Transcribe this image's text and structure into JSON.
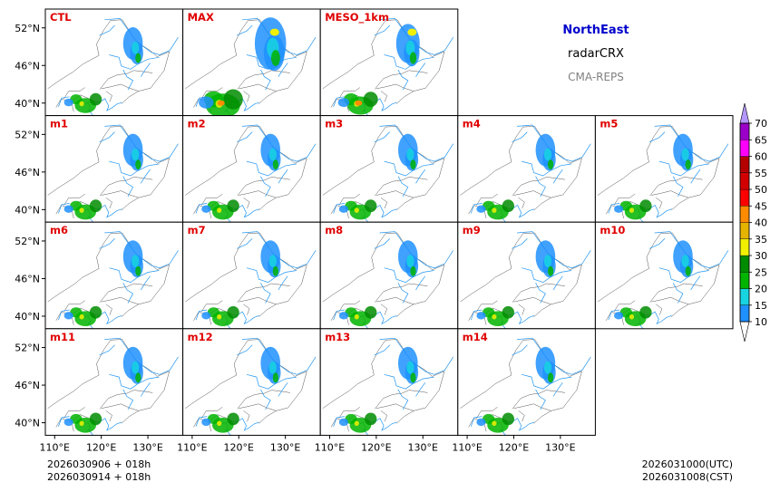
{
  "header": {
    "region": "NorthEast",
    "product": "radarCRX",
    "model": "CMA-REPS",
    "region_color": "#0000cc",
    "product_color": "#000000",
    "model_color": "#808080"
  },
  "panel_label_color": "#e00000",
  "panels": [
    [
      "CTL",
      "MAX",
      "MESO_1km"
    ],
    [
      "m1",
      "m2",
      "m3",
      "m4",
      "m5"
    ],
    [
      "m6",
      "m7",
      "m8",
      "m9",
      "m10"
    ],
    [
      "m11",
      "m12",
      "m13",
      "m14"
    ]
  ],
  "axes": {
    "lat_ticks": [
      "52°N",
      "46°N",
      "40°N"
    ],
    "lat_values": [
      52,
      46,
      40
    ],
    "lon_ticks": [
      "110°E",
      "120°E",
      "130°E"
    ],
    "lon_values": [
      110,
      120,
      130
    ],
    "lat_range": [
      38,
      55
    ],
    "lon_range": [
      108,
      137.5
    ]
  },
  "colorbar": {
    "levels": [
      "10",
      "15",
      "20",
      "25",
      "30",
      "35",
      "40",
      "45",
      "50",
      "55",
      "60",
      "65",
      "70"
    ],
    "colors": [
      "#1e90ff",
      "#17d4e0",
      "#00b400",
      "#008c00",
      "#f0f000",
      "#e6b400",
      "#ff8c00",
      "#ff0000",
      "#d20000",
      "#b40000",
      "#ff00ff",
      "#9b00c8",
      "#b496ff"
    ]
  },
  "footer": {
    "init_utc": "2026030906  +  018h",
    "init_cst": "2026030914  +  018h",
    "valid_utc": "2026031000(UTC)",
    "valid_cst": "2026031008(CST)"
  },
  "map_colors": {
    "river": "#2196f3",
    "border": "#555555",
    "echo_light": "#1e90ff",
    "echo_cyan": "#17d4e0",
    "echo_green": "#00b400",
    "echo_dgreen": "#008c00",
    "echo_yellow": "#f0f000",
    "echo_orange": "#ff8c00"
  }
}
